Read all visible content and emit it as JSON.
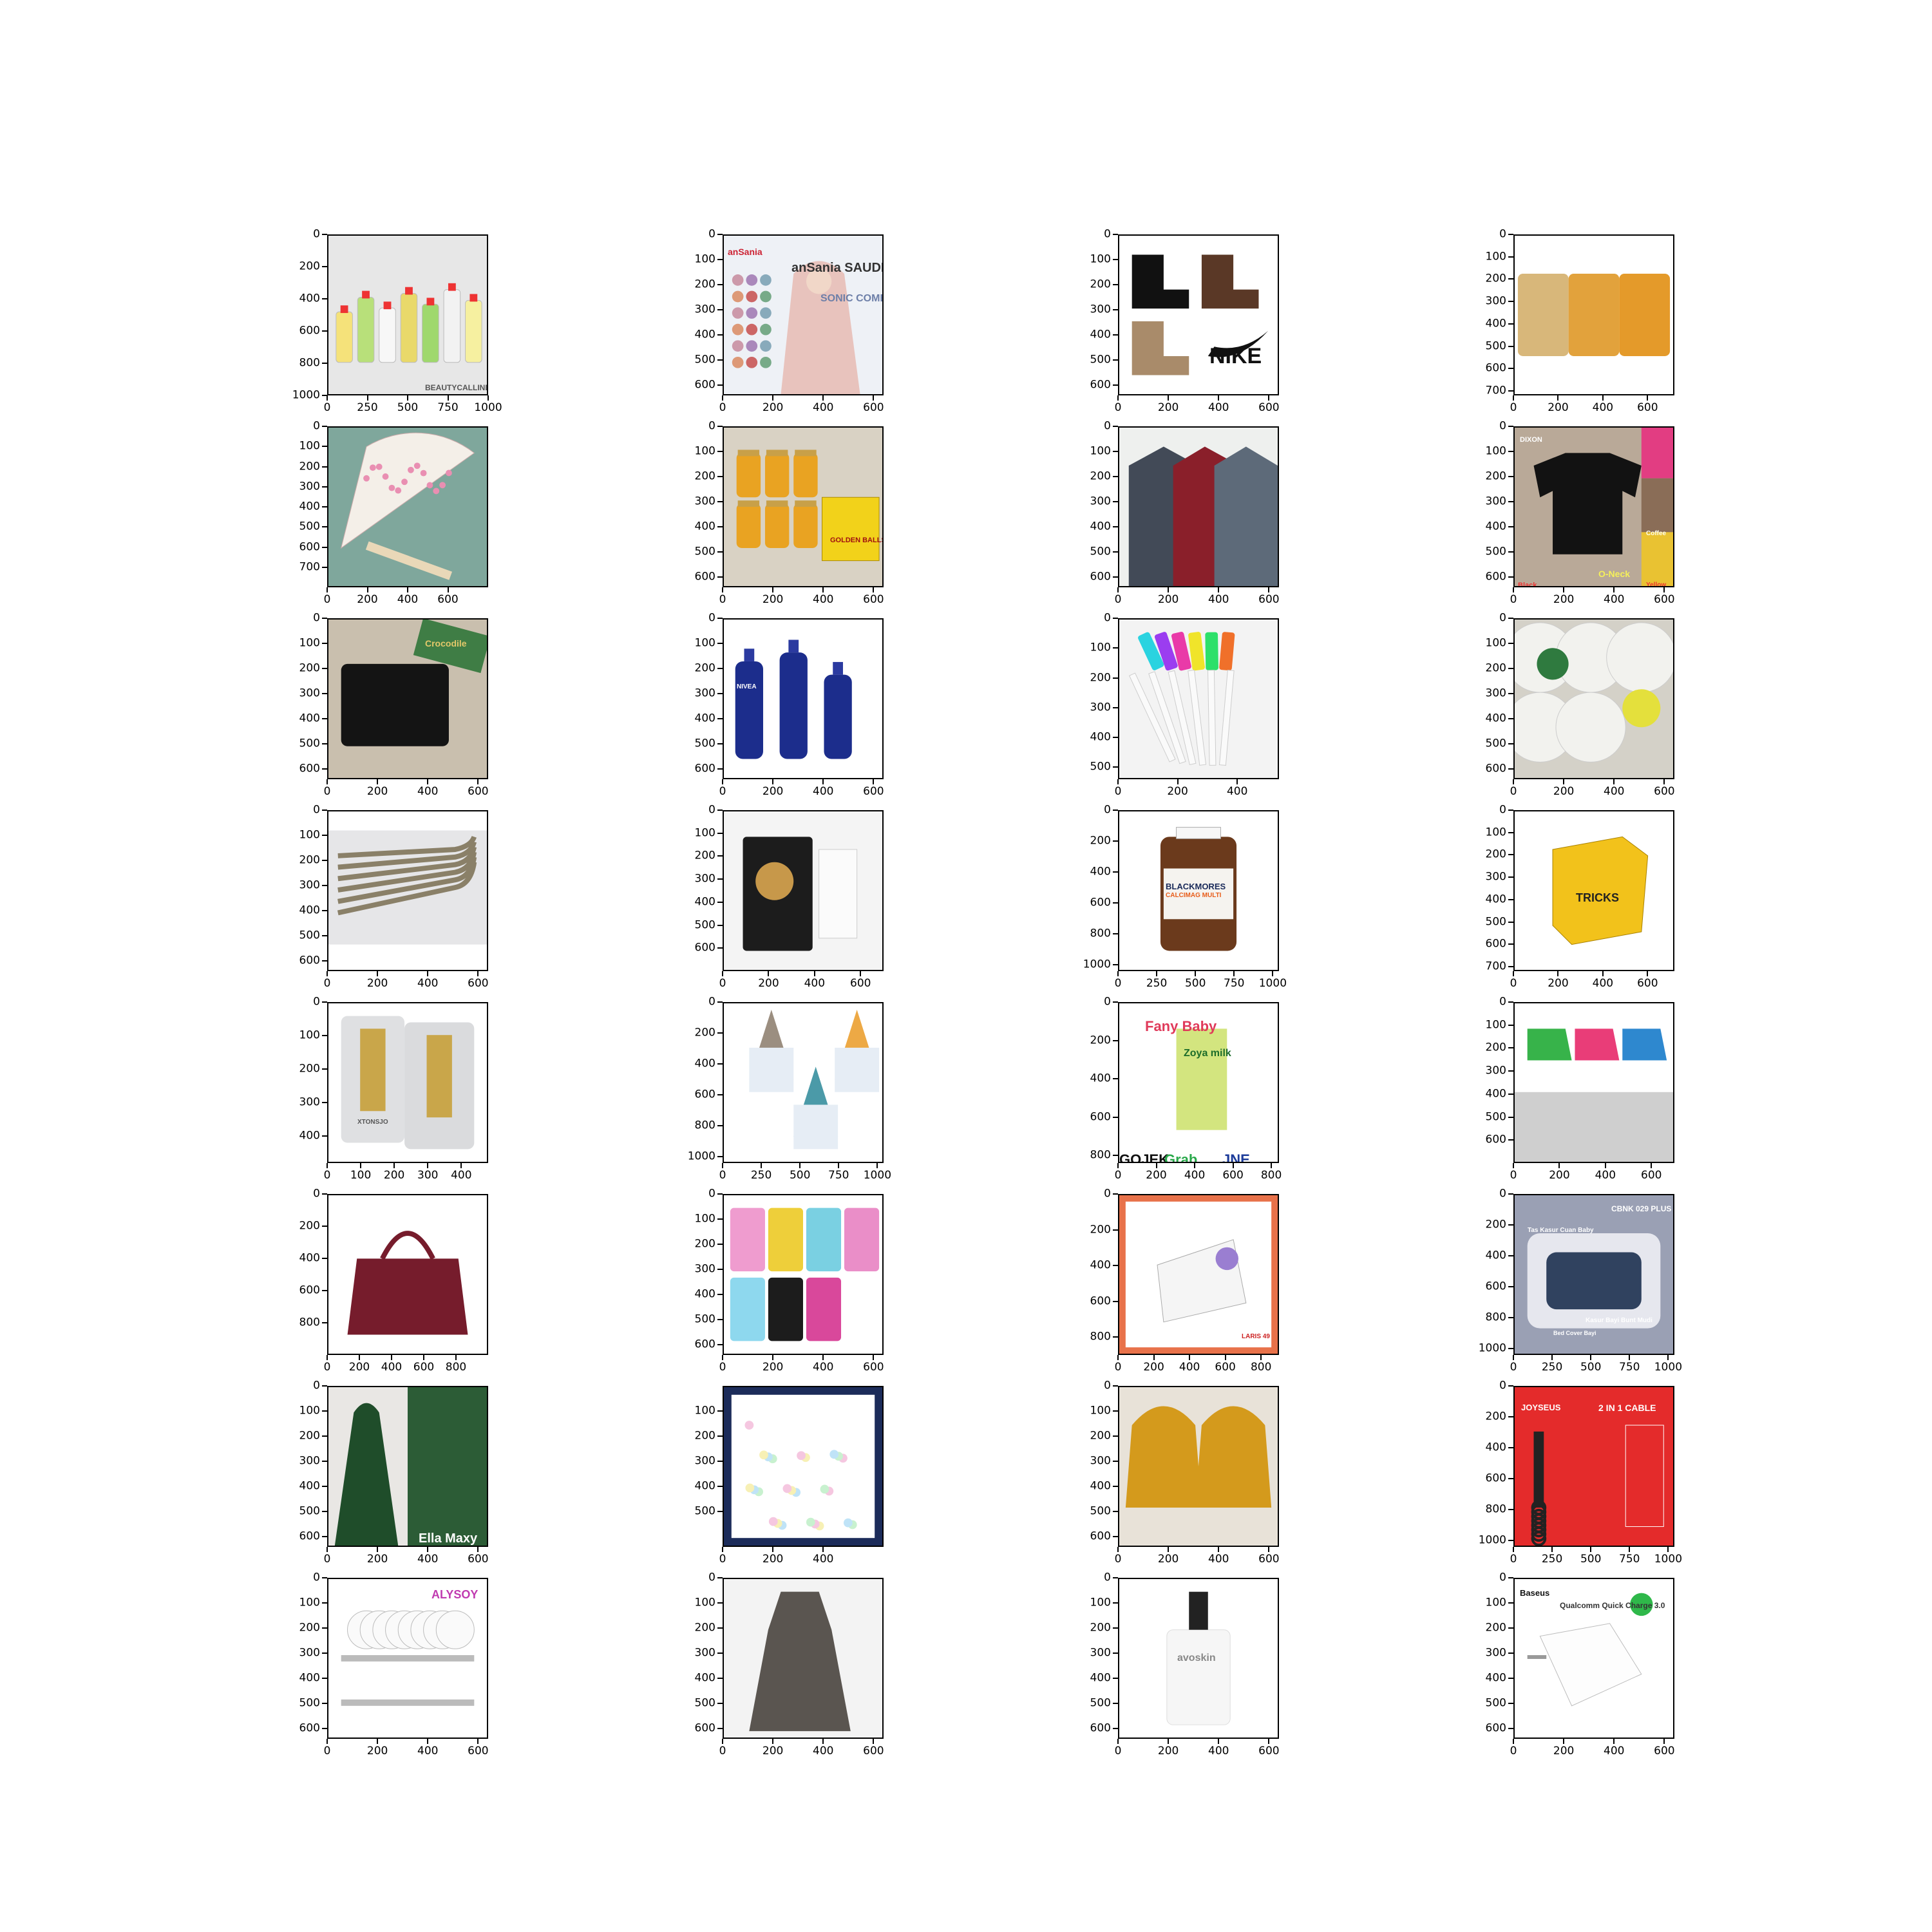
{
  "figure": {
    "rows": 8,
    "cols": 4,
    "panels": [
      {
        "id": "p1",
        "x_ticks": [
          "0",
          "250",
          "500",
          "750",
          "1000"
        ],
        "y_ticks": [
          "0",
          "200",
          "400",
          "600",
          "800",
          "1000"
        ],
        "xmax": 1000,
        "ymax": 1000,
        "bg": "#e7e7e7",
        "art": "bottles",
        "texts": [
          "BEAUTYCALLINDO"
        ]
      },
      {
        "id": "p2",
        "x_ticks": [
          "0",
          "200",
          "400",
          "600"
        ],
        "y_ticks": [
          "0",
          "100",
          "200",
          "300",
          "400",
          "500",
          "600"
        ],
        "xmax": 640,
        "ymax": 640,
        "bg": "#eef1f6",
        "art": "hijab",
        "texts": [
          "anSania",
          "anSania SAUDIA",
          "SONIC COMBO A"
        ]
      },
      {
        "id": "p3",
        "x_ticks": [
          "0",
          "200",
          "400",
          "600"
        ],
        "y_ticks": [
          "0",
          "100",
          "200",
          "300",
          "400",
          "500",
          "600"
        ],
        "xmax": 640,
        "ymax": 640,
        "bg": "#ffffff",
        "art": "boots",
        "texts": [
          "NIKE"
        ]
      },
      {
        "id": "p4",
        "x_ticks": [
          "0",
          "200",
          "400",
          "600"
        ],
        "y_ticks": [
          "0",
          "100",
          "200",
          "300",
          "400",
          "500",
          "600",
          "700"
        ],
        "xmax": 720,
        "ymax": 720,
        "bg": "#ffffff",
        "art": "grain",
        "texts": []
      },
      {
        "id": "p5",
        "x_ticks": [
          "0",
          "200",
          "400",
          "600"
        ],
        "y_ticks": [
          "0",
          "100",
          "200",
          "300",
          "400",
          "500",
          "600",
          "700"
        ],
        "xmax": 800,
        "ymax": 800,
        "bg": "#7fa79c",
        "art": "fan",
        "texts": []
      },
      {
        "id": "p6",
        "x_ticks": [
          "0",
          "200",
          "400",
          "600"
        ],
        "y_ticks": [
          "0",
          "100",
          "200",
          "300",
          "400",
          "500",
          "600"
        ],
        "xmax": 640,
        "ymax": 640,
        "bg": "#d9d2c4",
        "art": "jars",
        "texts": [
          "GOLDEN BALLS"
        ]
      },
      {
        "id": "p7",
        "x_ticks": [
          "0",
          "200",
          "400",
          "600"
        ],
        "y_ticks": [
          "0",
          "100",
          "200",
          "300",
          "400",
          "500",
          "600"
        ],
        "xmax": 640,
        "ymax": 640,
        "bg": "#eef0ee",
        "art": "sweaters",
        "texts": []
      },
      {
        "id": "p8",
        "x_ticks": [
          "0",
          "200",
          "400",
          "600"
        ],
        "y_ticks": [
          "0",
          "100",
          "200",
          "300",
          "400",
          "500",
          "600"
        ],
        "xmax": 640,
        "ymax": 640,
        "bg": "#b9a998",
        "art": "tshirt",
        "texts": [
          "DIXON",
          "O-Neck",
          "Black",
          "Coffee",
          "Yellow"
        ]
      },
      {
        "id": "p9",
        "x_ticks": [
          "0",
          "200",
          "400",
          "600"
        ],
        "y_ticks": [
          "0",
          "100",
          "200",
          "300",
          "400",
          "500",
          "600"
        ],
        "xmax": 640,
        "ymax": 640,
        "bg": "#c9bfae",
        "art": "wallet",
        "texts": [
          "Crocodile"
        ]
      },
      {
        "id": "p10",
        "x_ticks": [
          "0",
          "200",
          "400",
          "600"
        ],
        "y_ticks": [
          "0",
          "100",
          "200",
          "300",
          "400",
          "500",
          "600"
        ],
        "xmax": 640,
        "ymax": 640,
        "bg": "#ffffff",
        "art": "lotion",
        "texts": [
          "NIVEA"
        ]
      },
      {
        "id": "p11",
        "x_ticks": [
          "0",
          "200",
          "400"
        ],
        "y_ticks": [
          "0",
          "100",
          "200",
          "300",
          "400",
          "500"
        ],
        "xmax": 540,
        "ymax": 540,
        "bg": "#f3f3f3",
        "art": "brushes",
        "texts": []
      },
      {
        "id": "p12",
        "x_ticks": [
          "0",
          "200",
          "400",
          "600"
        ],
        "y_ticks": [
          "0",
          "100",
          "200",
          "300",
          "400",
          "500",
          "600"
        ],
        "xmax": 640,
        "ymax": 640,
        "bg": "#d4d1c8",
        "art": "tubs",
        "texts": []
      },
      {
        "id": "p13",
        "x_ticks": [
          "0",
          "200",
          "400",
          "600"
        ],
        "y_ticks": [
          "0",
          "100",
          "200",
          "300",
          "400",
          "500",
          "600"
        ],
        "xmax": 640,
        "ymax": 640,
        "bg": "#ffffff",
        "art": "exhaust",
        "texts": []
      },
      {
        "id": "p14",
        "x_ticks": [
          "0",
          "200",
          "400",
          "600"
        ],
        "y_ticks": [
          "0",
          "100",
          "200",
          "300",
          "400",
          "500",
          "600"
        ],
        "xmax": 700,
        "ymax": 700,
        "bg": "#f4f4f4",
        "art": "cream",
        "texts": []
      },
      {
        "id": "p15",
        "x_ticks": [
          "0",
          "250",
          "500",
          "750",
          "1000"
        ],
        "y_ticks": [
          "0",
          "200",
          "400",
          "600",
          "800",
          "1000"
        ],
        "xmax": 1040,
        "ymax": 1040,
        "bg": "#ffffff",
        "art": "supplement",
        "texts": [
          "BLACKMORES",
          "CALCIMAG MULTI"
        ]
      },
      {
        "id": "p16",
        "x_ticks": [
          "0",
          "200",
          "400",
          "600"
        ],
        "y_ticks": [
          "0",
          "100",
          "200",
          "300",
          "400",
          "500",
          "600",
          "700"
        ],
        "xmax": 720,
        "ymax": 720,
        "bg": "#ffffff",
        "art": "box",
        "texts": [
          "TRICKS"
        ]
      },
      {
        "id": "p17",
        "x_ticks": [
          "0",
          "100",
          "200",
          "300",
          "400"
        ],
        "y_ticks": [
          "0",
          "100",
          "200",
          "300",
          "400"
        ],
        "xmax": 480,
        "ymax": 480,
        "bg": "#ffffff",
        "art": "pouches",
        "texts": [
          "XTONSJO"
        ]
      },
      {
        "id": "p18",
        "x_ticks": [
          "0",
          "250",
          "500",
          "750",
          "1000"
        ],
        "y_ticks": [
          "0",
          "200",
          "400",
          "600",
          "800",
          "1000"
        ],
        "xmax": 1040,
        "ymax": 1040,
        "bg": "#ffffff",
        "art": "swaddles",
        "texts": []
      },
      {
        "id": "p19",
        "x_ticks": [
          "0",
          "200",
          "400",
          "600",
          "800"
        ],
        "y_ticks": [
          "0",
          "200",
          "400",
          "600",
          "800"
        ],
        "xmax": 840,
        "ymax": 840,
        "bg": "#ffffff",
        "art": "milk",
        "texts": [
          "Fany Baby",
          "Zoya milk",
          "GOJEK",
          "Grab",
          "JNE"
        ]
      },
      {
        "id": "p20",
        "x_ticks": [
          "0",
          "200",
          "400",
          "600"
        ],
        "y_ticks": [
          "0",
          "100",
          "200",
          "300",
          "400",
          "500",
          "600"
        ],
        "xmax": 700,
        "ymax": 700,
        "bg": "#ffffff",
        "art": "dustpan",
        "texts": []
      },
      {
        "id": "p21",
        "x_ticks": [
          "0",
          "200",
          "400",
          "600",
          "800"
        ],
        "y_ticks": [
          "0",
          "200",
          "400",
          "600",
          "800"
        ],
        "xmax": 1000,
        "ymax": 1000,
        "bg": "#ffffff",
        "art": "bag",
        "texts": []
      },
      {
        "id": "p22",
        "x_ticks": [
          "0",
          "200",
          "400",
          "600"
        ],
        "y_ticks": [
          "0",
          "100",
          "200",
          "300",
          "400",
          "500",
          "600"
        ],
        "xmax": 640,
        "ymax": 640,
        "bg": "#ffffff",
        "art": "hampers",
        "texts": []
      },
      {
        "id": "p23",
        "x_ticks": [
          "0",
          "200",
          "400",
          "600",
          "800"
        ],
        "y_ticks": [
          "0",
          "200",
          "400",
          "600",
          "800"
        ],
        "xmax": 900,
        "ymax": 900,
        "bg": "#ffffff",
        "art": "sewing",
        "texts": [
          "LARIS 49"
        ]
      },
      {
        "id": "p24",
        "x_ticks": [
          "0",
          "250",
          "500",
          "750",
          "1000"
        ],
        "y_ticks": [
          "0",
          "200",
          "400",
          "600",
          "800",
          "1000"
        ],
        "xmax": 1040,
        "ymax": 1040,
        "bg": "#9aa0b4",
        "art": "babybed",
        "texts": [
          "CBNK 029 PLUS",
          "Tas Kasur Cuan Baby",
          "Kasur Bayi Bunt Mudi",
          "Bed Cover Bayi"
        ]
      },
      {
        "id": "p25",
        "x_ticks": [
          "0",
          "200",
          "400",
          "600"
        ],
        "y_ticks": [
          "0",
          "100",
          "200",
          "300",
          "400",
          "500",
          "600"
        ],
        "xmax": 640,
        "ymax": 640,
        "bg": "#e9e7e4",
        "art": "gown",
        "texts": [
          "Ella Maxy"
        ]
      },
      {
        "id": "p26",
        "x_ticks": [
          "0",
          "200",
          "400"
        ],
        "y_ticks": [
          "100",
          "200",
          "300",
          "400",
          "500"
        ],
        "xmax": 640,
        "ymax": 640,
        "bg": "#ffffff",
        "art": "stars",
        "texts": []
      },
      {
        "id": "p27",
        "x_ticks": [
          "0",
          "200",
          "400",
          "600"
        ],
        "y_ticks": [
          "0",
          "100",
          "200",
          "300",
          "400",
          "500",
          "600"
        ],
        "xmax": 640,
        "ymax": 640,
        "bg": "#e8e2d8",
        "art": "khimar",
        "texts": []
      },
      {
        "id": "p28",
        "x_ticks": [
          "0",
          "250",
          "500",
          "750",
          "1000"
        ],
        "y_ticks": [
          "0",
          "200",
          "400",
          "600",
          "800",
          "1000"
        ],
        "xmax": 1040,
        "ymax": 1040,
        "bg": "#e42b2b",
        "art": "cable",
        "texts": [
          "JOYSEUS",
          "2 IN 1 CABLE"
        ]
      },
      {
        "id": "p29",
        "x_ticks": [
          "0",
          "200",
          "400",
          "600"
        ],
        "y_ticks": [
          "0",
          "100",
          "200",
          "300",
          "400",
          "500",
          "600"
        ],
        "xmax": 640,
        "ymax": 640,
        "bg": "#ffffff",
        "art": "rack",
        "texts": [
          "ALYSOY"
        ]
      },
      {
        "id": "p30",
        "x_ticks": [
          "0",
          "200",
          "400",
          "600"
        ],
        "y_ticks": [
          "0",
          "100",
          "200",
          "300",
          "400",
          "500",
          "600"
        ],
        "xmax": 640,
        "ymax": 640,
        "bg": "#f3f3f3",
        "art": "dress",
        "texts": []
      },
      {
        "id": "p31",
        "x_ticks": [
          "0",
          "200",
          "400",
          "600"
        ],
        "y_ticks": [
          "0",
          "100",
          "200",
          "300",
          "400",
          "500",
          "600"
        ],
        "xmax": 640,
        "ymax": 640,
        "bg": "#ffffff",
        "art": "serum",
        "texts": [
          "avoskin"
        ]
      },
      {
        "id": "p32",
        "x_ticks": [
          "0",
          "200",
          "400",
          "600"
        ],
        "y_ticks": [
          "0",
          "100",
          "200",
          "300",
          "400",
          "500",
          "600"
        ],
        "xmax": 640,
        "ymax": 640,
        "bg": "#ffffff",
        "art": "charger",
        "texts": [
          "Baseus",
          "Qualcomm Quick Charge 3.0"
        ]
      }
    ]
  }
}
